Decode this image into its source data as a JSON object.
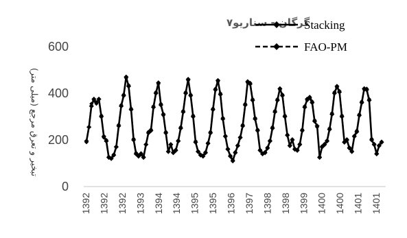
{
  "colors": {
    "series": "#000000",
    "axis": "#d9d9d9",
    "text": "#444444",
    "background": "#ffffff"
  },
  "chart_data": {
    "type": "line",
    "title": "گرگان - سناریو۷",
    "ylabel": "تبخیر و تعرق مرجع (میلی متر)",
    "xlabel": "",
    "ylim": [
      0,
      600
    ],
    "yticks": [
      "0",
      "200",
      "400",
      "600"
    ],
    "xtick_labels": [
      "1392",
      "1392",
      "1392",
      "1393",
      "1394",
      "1394",
      "1395",
      "1395",
      "1396",
      "1397",
      "1398",
      "1398",
      "1399",
      "1400",
      "1400",
      "1401",
      "1401"
    ],
    "grid": false,
    "legend": "top-right",
    "series": [
      {
        "name": "Stacking",
        "style": "solid",
        "values": [
          195,
          255,
          345,
          375,
          360,
          375,
          300,
          215,
          195,
          125,
          120,
          135,
          170,
          260,
          345,
          390,
          470,
          430,
          330,
          200,
          140,
          130,
          140,
          125,
          180,
          230,
          240,
          340,
          400,
          445,
          350,
          310,
          230,
          150,
          180,
          145,
          155,
          195,
          250,
          320,
          400,
          460,
          390,
          300,
          190,
          150,
          135,
          130,
          145,
          185,
          230,
          330,
          415,
          455,
          395,
          290,
          215,
          160,
          130,
          110,
          145,
          175,
          210,
          260,
          350,
          450,
          440,
          370,
          290,
          240,
          155,
          140,
          145,
          165,
          195,
          250,
          320,
          370,
          420,
          390,
          300,
          220,
          175,
          200,
          160,
          155,
          180,
          240,
          340,
          375,
          380,
          360,
          280,
          260,
          125,
          170,
          180,
          195,
          245,
          310,
          400,
          430,
          405,
          300,
          190,
          200,
          165,
          150,
          215,
          235,
          305,
          360,
          420,
          415,
          370,
          200,
          180,
          140,
          175,
          190
        ]
      },
      {
        "name": "FAO-PM",
        "style": "dashed",
        "values": [
          190,
          255,
          355,
          370,
          355,
          375,
          305,
          210,
          200,
          128,
          122,
          138,
          172,
          265,
          350,
          395,
          465,
          435,
          335,
          205,
          145,
          135,
          143,
          128,
          182,
          235,
          245,
          345,
          405,
          440,
          355,
          305,
          235,
          152,
          182,
          148,
          158,
          198,
          255,
          325,
          405,
          455,
          395,
          305,
          195,
          152,
          138,
          133,
          148,
          188,
          235,
          335,
          420,
          450,
          400,
          295,
          218,
          163,
          133,
          114,
          148,
          178,
          213,
          265,
          355,
          445,
          445,
          375,
          295,
          245,
          158,
          143,
          148,
          168,
          198,
          255,
          325,
          375,
          415,
          395,
          305,
          223,
          178,
          203,
          163,
          158,
          183,
          245,
          345,
          370,
          385,
          365,
          285,
          255,
          128,
          173,
          183,
          198,
          250,
          315,
          405,
          425,
          410,
          305,
          193,
          203,
          168,
          153,
          218,
          240,
          310,
          365,
          415,
          420,
          375,
          205,
          183,
          143,
          178,
          193
        ]
      }
    ]
  }
}
